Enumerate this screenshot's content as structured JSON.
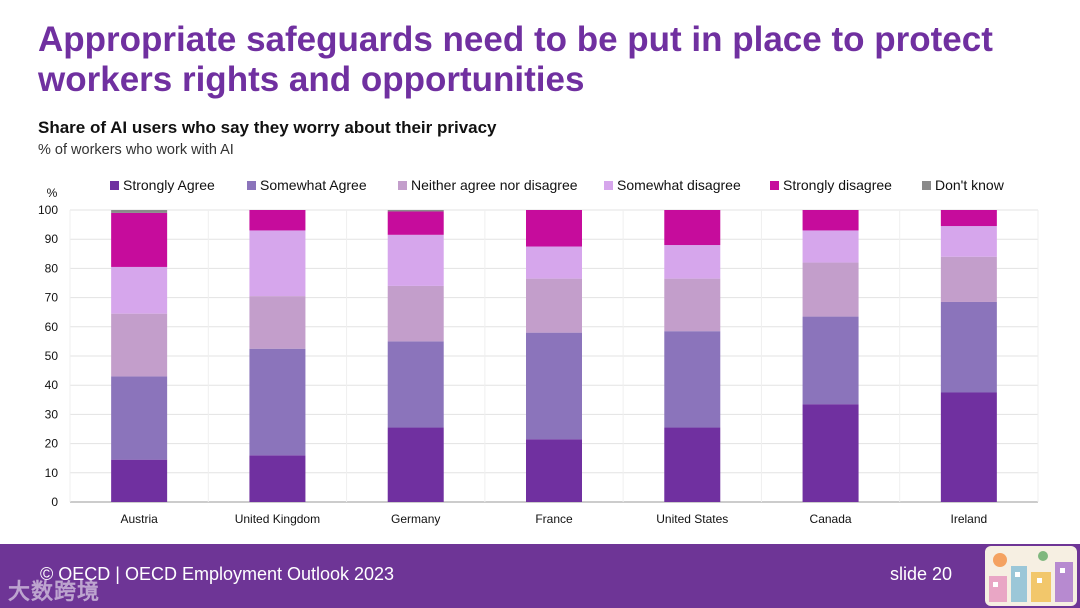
{
  "slide": {
    "title": "Appropriate safeguards need to be put in place to protect workers rights and opportunities",
    "footer": "© OECD | OECD Employment Outlook 2023",
    "slide_number": "slide 20",
    "watermark": "大数跨境"
  },
  "chart_data": {
    "type": "bar",
    "stacked": true,
    "title": "Share of AI users who say they worry about their privacy",
    "subtitle": "% of workers who work with AI",
    "ylabel": "%",
    "ylim": [
      0,
      100
    ],
    "yticks": [
      0,
      10,
      20,
      30,
      40,
      50,
      60,
      70,
      80,
      90,
      100
    ],
    "grid": true,
    "legend_position": "top",
    "categories": [
      "Austria",
      "United Kingdom",
      "Germany",
      "France",
      "United States",
      "Canada",
      "Ireland"
    ],
    "series": [
      {
        "name": "Strongly Agree",
        "color": "#7030a0",
        "values": [
          14.5,
          16,
          25.5,
          21.5,
          25.5,
          33.5,
          37.5
        ]
      },
      {
        "name": "Somewhat Agree",
        "color": "#8b74bb",
        "values": [
          28.5,
          36.5,
          29.5,
          36.5,
          33,
          30,
          31
        ]
      },
      {
        "name": "Neither agree nor disagree",
        "color": "#c39ecb",
        "values": [
          21.5,
          18,
          19,
          18.5,
          18,
          18.5,
          15.5
        ]
      },
      {
        "name": "Somewhat disagree",
        "color": "#d6a6ec",
        "values": [
          16,
          22.5,
          17.5,
          11,
          11.5,
          11,
          10.5
        ]
      },
      {
        "name": "Strongly disagree",
        "color": "#c60c9c",
        "values": [
          18.5,
          7,
          8,
          12.5,
          12,
          7,
          5.5
        ]
      },
      {
        "name": "Don't know",
        "color": "#8a8a8a",
        "values": [
          1,
          0,
          0.5,
          0,
          0,
          0,
          0
        ]
      }
    ]
  }
}
